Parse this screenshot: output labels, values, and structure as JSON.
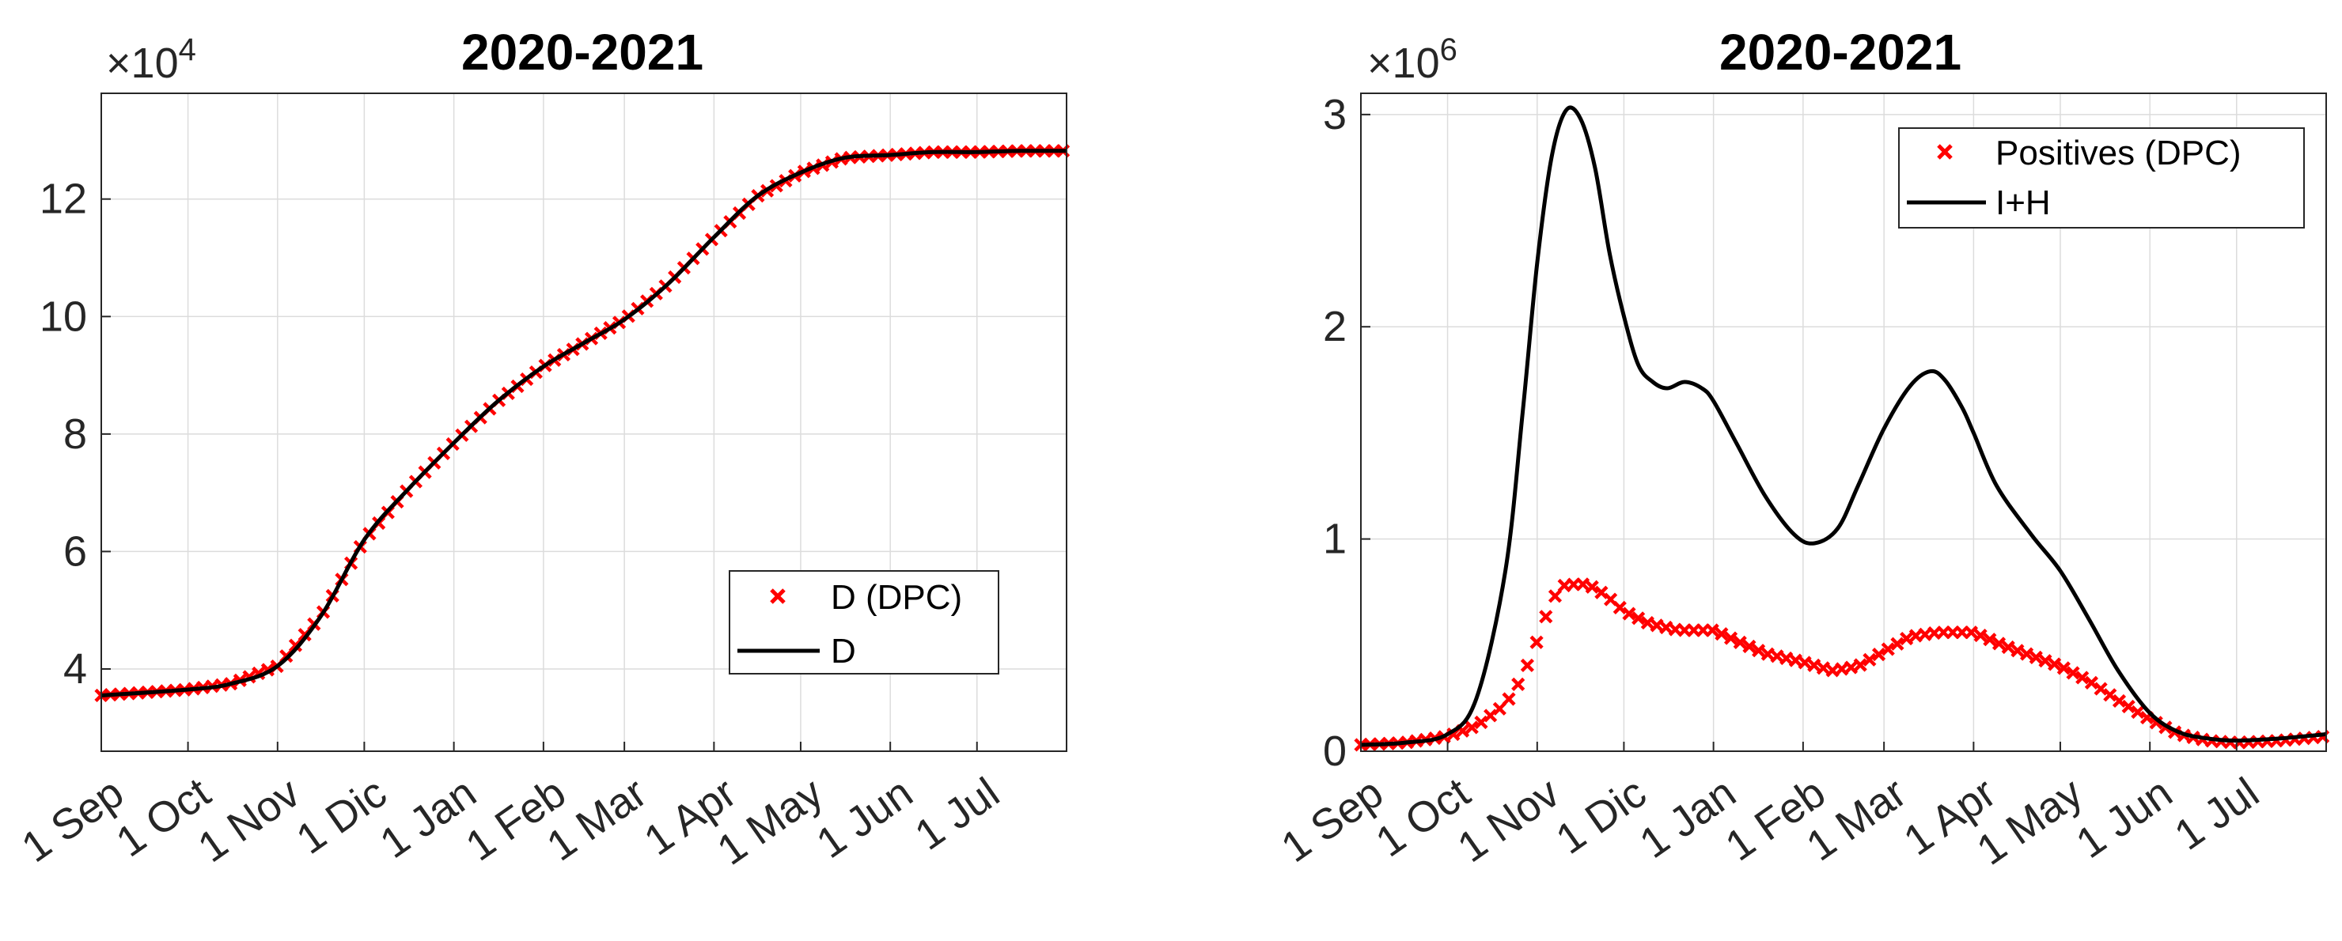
{
  "chart_data": [
    {
      "type": "line",
      "title": "2020-2021",
      "xlabel": "",
      "ylabel": "",
      "y_exponent_label": "×10⁴",
      "y_exponent_base": "×10",
      "y_exponent_power": "4",
      "xlim": [
        0,
        334
      ],
      "ylim": [
        2.6,
        13.8
      ],
      "yticks": [
        4,
        6,
        8,
        10,
        12
      ],
      "yticklabels": [
        "4",
        "6",
        "8",
        "10",
        "12"
      ],
      "xticks": [
        0,
        30,
        61,
        91,
        122,
        153,
        181,
        212,
        242,
        273,
        303
      ],
      "xticklabels": [
        "1 Sep",
        "1 Oct",
        "1 Nov",
        "1 Dic",
        "1 Jan",
        "1 Feb",
        "1 Mar",
        "1 Apr",
        "1 May",
        "1 Jun",
        "1 Jul"
      ],
      "grid": true,
      "legend_position": "bottom-right",
      "series": [
        {
          "name": "D (DPC)",
          "style": "markers",
          "color": "#ff0000",
          "x": [
            0,
            30,
            45,
            61,
            76,
            91,
            106,
            122,
            137,
            153,
            167,
            181,
            196,
            212,
            227,
            242,
            257,
            273,
            288,
            303,
            318,
            334
          ],
          "y": [
            3.55,
            3.65,
            3.75,
            4.05,
            4.9,
            6.2,
            7.05,
            7.85,
            8.55,
            9.15,
            9.55,
            9.95,
            10.55,
            11.35,
            12.05,
            12.45,
            12.7,
            12.75,
            12.8,
            12.8,
            12.82,
            12.82
          ]
        },
        {
          "name": "D",
          "style": "line",
          "color": "#000000",
          "x": [
            0,
            30,
            45,
            61,
            76,
            91,
            106,
            122,
            137,
            153,
            167,
            181,
            196,
            212,
            227,
            242,
            257,
            273,
            288,
            303,
            318,
            334
          ],
          "y": [
            3.55,
            3.65,
            3.75,
            4.05,
            4.9,
            6.2,
            7.05,
            7.85,
            8.55,
            9.15,
            9.55,
            9.95,
            10.55,
            11.35,
            12.05,
            12.45,
            12.7,
            12.75,
            12.8,
            12.8,
            12.82,
            12.82
          ]
        }
      ]
    },
    {
      "type": "line",
      "title": "2020-2021",
      "xlabel": "",
      "ylabel": "",
      "y_exponent_label": "×10⁶",
      "y_exponent_base": "×10",
      "y_exponent_power": "6",
      "xlim": [
        0,
        334
      ],
      "ylim": [
        0,
        3.1
      ],
      "yticks": [
        0,
        1,
        2,
        3
      ],
      "yticklabels": [
        "0",
        "1",
        "2",
        "3"
      ],
      "xticks": [
        0,
        30,
        61,
        91,
        122,
        153,
        181,
        212,
        242,
        273,
        303
      ],
      "xticklabels": [
        "1 Sep",
        "1 Oct",
        "1 Nov",
        "1 Dic",
        "1 Jan",
        "1 Feb",
        "1 Mar",
        "1 Apr",
        "1 May",
        "1 Jun",
        "1 Jul"
      ],
      "grid": true,
      "legend_position": "top-right",
      "series": [
        {
          "name": "Positives (DPC)",
          "style": "markers",
          "color": "#ff0000",
          "x": [
            0,
            15,
            30,
            40,
            50,
            56,
            61,
            66,
            70,
            76,
            81,
            86,
            91,
            100,
            110,
            122,
            130,
            140,
            153,
            163,
            172,
            181,
            190,
            200,
            212,
            222,
            232,
            242,
            252,
            262,
            273,
            283,
            293,
            303,
            318,
            334
          ],
          "y": [
            0.03,
            0.04,
            0.07,
            0.12,
            0.22,
            0.35,
            0.52,
            0.71,
            0.78,
            0.79,
            0.77,
            0.72,
            0.66,
            0.6,
            0.57,
            0.57,
            0.52,
            0.46,
            0.42,
            0.38,
            0.4,
            0.47,
            0.54,
            0.56,
            0.56,
            0.5,
            0.45,
            0.4,
            0.33,
            0.24,
            0.15,
            0.08,
            0.05,
            0.04,
            0.05,
            0.07
          ]
        },
        {
          "name": "I+H",
          "style": "line",
          "color": "#000000",
          "x": [
            0,
            15,
            30,
            40,
            50,
            56,
            61,
            66,
            71,
            76,
            81,
            86,
            91,
            96,
            101,
            106,
            112,
            118,
            122,
            130,
            140,
            150,
            157,
            165,
            172,
            181,
            190,
            197,
            202,
            208,
            212,
            220,
            232,
            242,
            252,
            262,
            273,
            283,
            293,
            303,
            318,
            334
          ],
          "y": [
            0.03,
            0.04,
            0.08,
            0.25,
            0.85,
            1.6,
            2.3,
            2.8,
            3.02,
            2.98,
            2.75,
            2.35,
            2.05,
            1.82,
            1.74,
            1.71,
            1.74,
            1.71,
            1.65,
            1.45,
            1.2,
            1.02,
            0.98,
            1.05,
            1.25,
            1.52,
            1.72,
            1.79,
            1.75,
            1.62,
            1.5,
            1.25,
            1.02,
            0.85,
            0.62,
            0.38,
            0.18,
            0.09,
            0.06,
            0.05,
            0.06,
            0.08
          ]
        }
      ]
    }
  ]
}
